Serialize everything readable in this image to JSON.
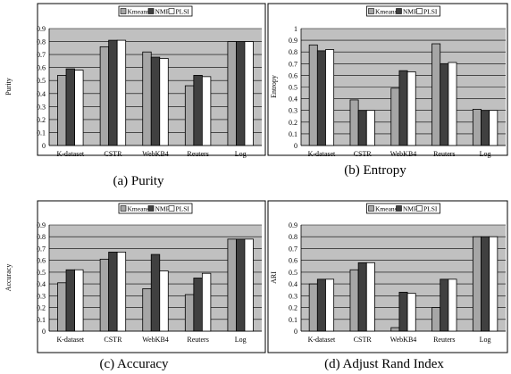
{
  "chart_data": [
    {
      "type": "bar",
      "caption": "(a)  Purity",
      "ylabel": "Purity",
      "ylim": [
        0,
        0.9
      ],
      "yticks": [
        "0",
        "0.1",
        "0.2",
        "0.3",
        "0.4",
        "0.5",
        "0.6",
        "0.7",
        "0.8",
        "0.9"
      ],
      "grid": true,
      "legend_position": "top-center",
      "categories": [
        "K-dataset",
        "CSTR",
        "WebKB4",
        "Reuters",
        "Log"
      ],
      "series": [
        {
          "name": "Kmeans",
          "color": "#a6a6a6",
          "values": [
            0.54,
            0.76,
            0.72,
            0.46,
            0.8
          ]
        },
        {
          "name": "NMF",
          "color": "#404040",
          "values": [
            0.59,
            0.81,
            0.68,
            0.54,
            0.8
          ]
        },
        {
          "name": "PLSI",
          "color": "#ffffff",
          "values": [
            0.58,
            0.81,
            0.67,
            0.53,
            0.8
          ]
        }
      ]
    },
    {
      "type": "bar",
      "caption": "(b)  Entropy",
      "ylabel": "Entropy",
      "ylim": [
        0,
        1
      ],
      "yticks": [
        "0",
        "0.1",
        "0.2",
        "0.3",
        "0.4",
        "0.5",
        "0.6",
        "0.7",
        "0.8",
        "0.9",
        "1"
      ],
      "grid": true,
      "legend_position": "top-center",
      "categories": [
        "K-dataset",
        "CSTR",
        "WebKB4",
        "Reuters",
        "Log"
      ],
      "series": [
        {
          "name": "Kmeans",
          "color": "#a6a6a6",
          "values": [
            0.86,
            0.39,
            0.49,
            0.87,
            0.31
          ]
        },
        {
          "name": "NMF",
          "color": "#404040",
          "values": [
            0.81,
            0.3,
            0.64,
            0.7,
            0.3
          ]
        },
        {
          "name": "PLSI",
          "color": "#ffffff",
          "values": [
            0.82,
            0.3,
            0.63,
            0.71,
            0.3
          ]
        }
      ]
    },
    {
      "type": "bar",
      "caption": "(c)  Accuracy",
      "ylabel": "Accuracy",
      "ylim": [
        0,
        0.9
      ],
      "yticks": [
        "0",
        "0.1",
        "0.2",
        "0.3",
        "0.4",
        "0.5",
        "0.6",
        "0.7",
        "0.8",
        "0.9"
      ],
      "grid": true,
      "legend_position": "top-center",
      "categories": [
        "K-dataset",
        "CSTR",
        "WebKB4",
        "Reuters",
        "Log"
      ],
      "series": [
        {
          "name": "Kmeans",
          "color": "#a6a6a6",
          "values": [
            0.41,
            0.61,
            0.36,
            0.31,
            0.78
          ]
        },
        {
          "name": "NMF",
          "color": "#404040",
          "values": [
            0.52,
            0.67,
            0.65,
            0.45,
            0.78
          ]
        },
        {
          "name": "PLSI",
          "color": "#ffffff",
          "values": [
            0.52,
            0.67,
            0.51,
            0.49,
            0.78
          ]
        }
      ]
    },
    {
      "type": "bar",
      "caption": "(d)  Adjust Rand Index",
      "ylabel": "ARI",
      "ylim": [
        0,
        0.9
      ],
      "yticks": [
        "0",
        "0.1",
        "0.2",
        "0.3",
        "0.4",
        "0.5",
        "0.6",
        "0.7",
        "0.8",
        "0.9"
      ],
      "grid": true,
      "legend_position": "top-center",
      "categories": [
        "K-dataset",
        "CSTR",
        "WebKB4",
        "Reuters",
        "Log"
      ],
      "series": [
        {
          "name": "Kmeans",
          "color": "#a6a6a6",
          "values": [
            0.4,
            0.52,
            0.03,
            0.2,
            0.8
          ]
        },
        {
          "name": "NMF",
          "color": "#404040",
          "values": [
            0.44,
            0.58,
            0.33,
            0.44,
            0.8
          ]
        },
        {
          "name": "PLSI",
          "color": "#ffffff",
          "values": [
            0.44,
            0.58,
            0.32,
            0.44,
            0.8
          ]
        }
      ]
    }
  ]
}
